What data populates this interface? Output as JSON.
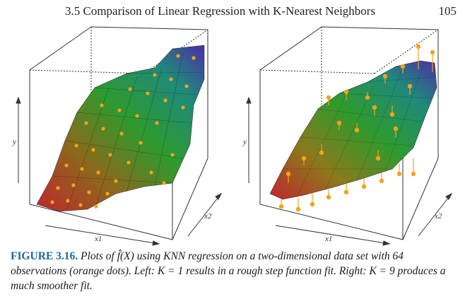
{
  "header": {
    "title": "3.5 Comparison of Linear Regression with K-Nearest Neighbors",
    "page_number": "105"
  },
  "figure": {
    "panels": [
      {
        "id": "left",
        "ylabel": "y",
        "xlabel": "x1",
        "zlabel": "x2",
        "k": 1,
        "surface": "rough step function"
      },
      {
        "id": "right",
        "ylabel": "y",
        "xlabel": "x1",
        "zlabel": "x2",
        "k": 9,
        "surface": "smooth"
      }
    ],
    "observation_color": "#f5a21b"
  },
  "caption": {
    "label": "FIGURE 3.16.",
    "text": " Plots of f̂(X) using KNN regression on a two-dimensional data set with 64 observations (orange dots). Left: K = 1 results in a rough step function fit. Right: K = 9 produces a much smoother fit."
  }
}
